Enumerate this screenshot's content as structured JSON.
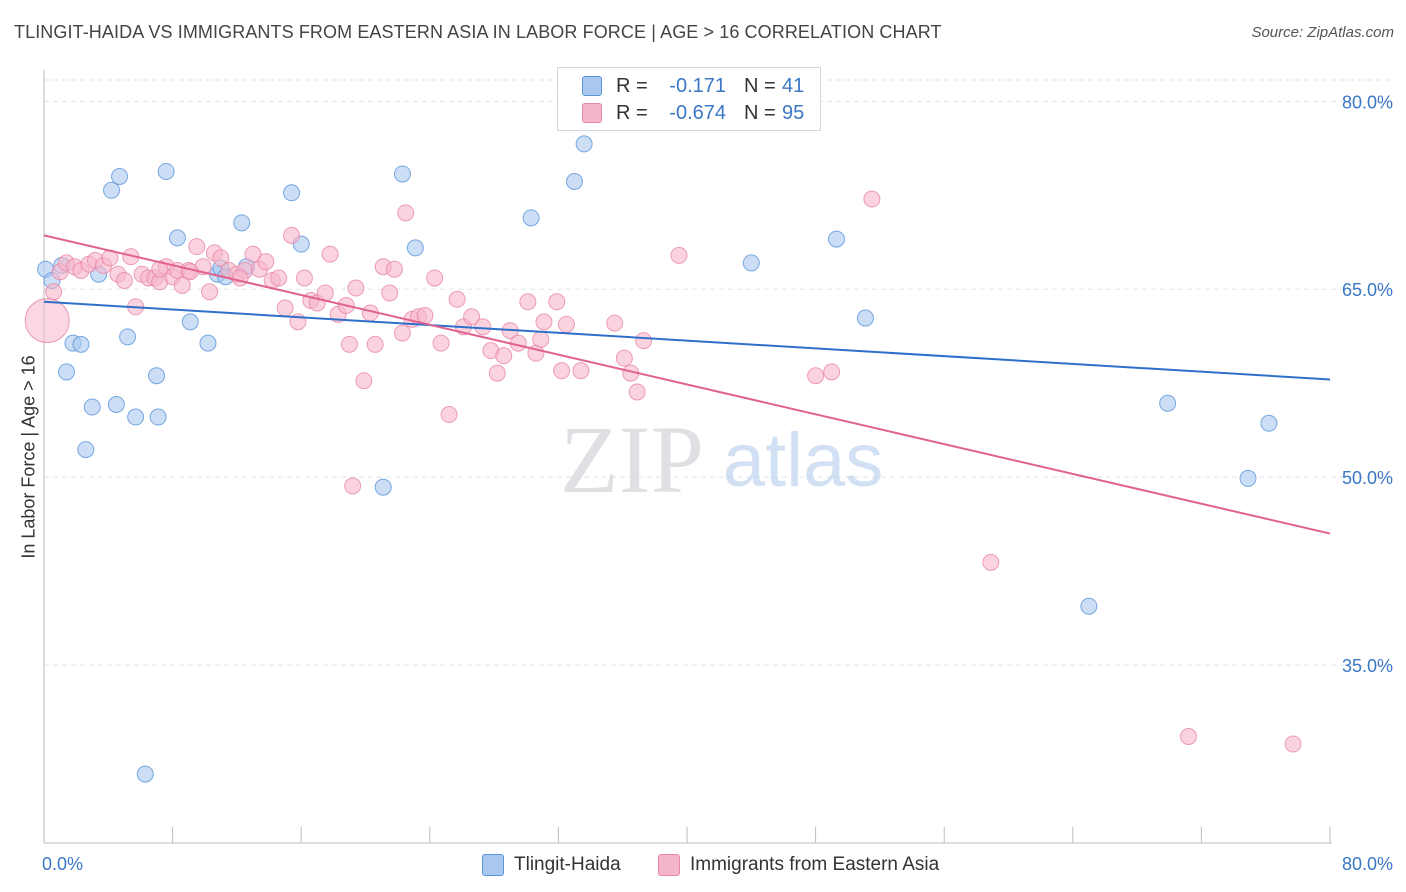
{
  "title": "TLINGIT-HAIDA VS IMMIGRANTS FROM EASTERN ASIA IN LABOR FORCE | AGE > 16 CORRELATION CHART",
  "source": "Source: ZipAtlas.com",
  "watermark": {
    "zip": "ZIP",
    "atlas": "atlas"
  },
  "colors": {
    "blue_fill": "#a9c8ef",
    "blue_stroke": "#5b95dc",
    "blue_line": "#2f6fcc",
    "pink_fill": "#f6b6ca",
    "pink_stroke": "#e987a8",
    "pink_line": "#e0628f",
    "axis_label": "#3a78c6",
    "grid": "#dfe3e8"
  },
  "legend_top": [
    {
      "r_label": "R =",
      "r_value": "-0.171",
      "n_label": "N =",
      "n_value": "41",
      "color": "blue"
    },
    {
      "r_label": "R =",
      "r_value": "-0.674",
      "n_label": "N =",
      "n_value": "95",
      "color": "pink"
    }
  ],
  "legend_bottom": [
    "Tlingit-Haida",
    "Immigrants from Eastern Asia"
  ],
  "chart_data": {
    "type": "scatter",
    "title": "TLINGIT-HAIDA VS IMMIGRANTS FROM EASTERN ASIA IN LABOR FORCE | AGE > 16 CORRELATION CHART",
    "xlabel": "",
    "ylabel": "In Labor Force | Age > 16",
    "xlim": [
      0,
      80
    ],
    "ylim": [
      20.8,
      82.5
    ],
    "x_tick_labels": [
      "0.0%",
      "80.0%"
    ],
    "y_tick_labels": [
      "80.0%",
      "65.0%",
      "50.0%",
      "35.0%"
    ],
    "y_ticks": [
      80,
      65,
      50,
      35
    ],
    "grid": true,
    "legend_position": "top-center",
    "series": [
      {
        "name": "Tlingit-Haida",
        "color": "blue",
        "trend": {
          "x": [
            0,
            80
          ],
          "y": [
            64.0,
            57.8
          ]
        },
        "points": [
          [
            0.1,
            66.6
          ],
          [
            0.5,
            65.7
          ],
          [
            1.1,
            66.9
          ],
          [
            1.4,
            58.4
          ],
          [
            1.8,
            60.7
          ],
          [
            2.3,
            60.6
          ],
          [
            2.6,
            52.2
          ],
          [
            3.0,
            55.6
          ],
          [
            3.4,
            66.2
          ],
          [
            4.2,
            72.9
          ],
          [
            4.5,
            55.8
          ],
          [
            4.7,
            74.0
          ],
          [
            5.2,
            61.2
          ],
          [
            5.7,
            54.8
          ],
          [
            6.3,
            26.3
          ],
          [
            7.0,
            58.1
          ],
          [
            7.1,
            54.8
          ],
          [
            7.6,
            74.4
          ],
          [
            8.3,
            69.1
          ],
          [
            9.1,
            62.4
          ],
          [
            10.2,
            60.7
          ],
          [
            10.8,
            66.2
          ],
          [
            11.0,
            66.7
          ],
          [
            11.3,
            66.0
          ],
          [
            12.3,
            70.3
          ],
          [
            12.6,
            66.8
          ],
          [
            15.4,
            72.7
          ],
          [
            16.0,
            68.6
          ],
          [
            21.1,
            49.2
          ],
          [
            22.3,
            74.2
          ],
          [
            23.1,
            68.3
          ],
          [
            30.3,
            70.7
          ],
          [
            33.0,
            73.6
          ],
          [
            33.6,
            76.6
          ],
          [
            44.0,
            67.1
          ],
          [
            49.3,
            69.0
          ],
          [
            51.1,
            62.7
          ],
          [
            65.0,
            39.7
          ],
          [
            69.9,
            55.9
          ],
          [
            74.9,
            49.9
          ],
          [
            76.2,
            54.3
          ]
        ]
      },
      {
        "name": "Immigrants from Eastern Asia",
        "color": "pink",
        "trend": {
          "x": [
            0,
            80
          ],
          "y": [
            69.3,
            45.5
          ]
        },
        "points": [
          [
            0.2,
            62.5
          ],
          [
            0.6,
            64.8
          ],
          [
            1.0,
            66.4
          ],
          [
            1.4,
            67.1
          ],
          [
            1.9,
            66.8
          ],
          [
            2.3,
            66.5
          ],
          [
            2.8,
            67.0
          ],
          [
            3.2,
            67.3
          ],
          [
            3.7,
            66.9
          ],
          [
            4.1,
            67.5
          ],
          [
            4.6,
            66.2
          ],
          [
            5.0,
            65.7
          ],
          [
            5.4,
            67.6
          ],
          [
            5.7,
            63.6
          ],
          [
            6.1,
            66.2
          ],
          [
            6.5,
            65.9
          ],
          [
            6.9,
            65.9
          ],
          [
            7.2,
            65.6
          ],
          [
            7.6,
            66.8
          ],
          [
            8.0,
            66.0
          ],
          [
            8.3,
            66.5
          ],
          [
            8.6,
            65.3
          ],
          [
            9.0,
            66.5
          ],
          [
            9.5,
            68.4
          ],
          [
            9.9,
            66.8
          ],
          [
            10.3,
            64.8
          ],
          [
            10.6,
            67.9
          ],
          [
            11.0,
            67.5
          ],
          [
            11.5,
            66.5
          ],
          [
            12.0,
            66.2
          ],
          [
            12.5,
            66.5
          ],
          [
            13.0,
            67.8
          ],
          [
            13.4,
            66.6
          ],
          [
            13.8,
            67.2
          ],
          [
            14.2,
            65.7
          ],
          [
            14.6,
            65.9
          ],
          [
            15.0,
            63.5
          ],
          [
            15.4,
            69.3
          ],
          [
            15.8,
            62.4
          ],
          [
            16.2,
            65.9
          ],
          [
            16.6,
            64.1
          ],
          [
            17.0,
            63.9
          ],
          [
            17.5,
            64.7
          ],
          [
            17.8,
            67.8
          ],
          [
            18.3,
            63.0
          ],
          [
            18.8,
            63.7
          ],
          [
            19.0,
            60.6
          ],
          [
            19.4,
            65.1
          ],
          [
            19.9,
            57.7
          ],
          [
            20.3,
            63.1
          ],
          [
            20.6,
            60.6
          ],
          [
            21.1,
            66.8
          ],
          [
            21.5,
            64.7
          ],
          [
            21.8,
            66.6
          ],
          [
            22.3,
            61.5
          ],
          [
            22.5,
            71.1
          ],
          [
            22.9,
            62.6
          ],
          [
            23.3,
            62.8
          ],
          [
            23.7,
            62.9
          ],
          [
            24.3,
            65.9
          ],
          [
            24.7,
            60.7
          ],
          [
            25.2,
            55.0
          ],
          [
            25.7,
            64.2
          ],
          [
            26.1,
            62.0
          ],
          [
            26.6,
            62.8
          ],
          [
            27.3,
            62.0
          ],
          [
            27.8,
            60.1
          ],
          [
            28.2,
            58.3
          ],
          [
            28.6,
            59.7
          ],
          [
            29.0,
            61.7
          ],
          [
            29.5,
            60.7
          ],
          [
            30.1,
            64.0
          ],
          [
            30.6,
            59.9
          ],
          [
            31.1,
            62.4
          ],
          [
            31.9,
            64.0
          ],
          [
            32.2,
            58.5
          ],
          [
            32.5,
            62.2
          ],
          [
            33.4,
            58.5
          ],
          [
            35.5,
            62.3
          ],
          [
            36.1,
            59.5
          ],
          [
            36.5,
            58.3
          ],
          [
            36.9,
            56.8
          ],
          [
            37.3,
            60.9
          ],
          [
            39.5,
            67.7
          ],
          [
            48.0,
            58.1
          ],
          [
            49.0,
            58.4
          ],
          [
            19.2,
            49.3
          ],
          [
            51.5,
            72.2
          ],
          [
            58.9,
            43.2
          ],
          [
            71.2,
            29.3
          ],
          [
            77.7,
            28.7
          ],
          [
            12.2,
            65.9
          ],
          [
            7.2,
            66.6
          ],
          [
            30.9,
            61.0
          ],
          [
            9.1,
            66.4
          ]
        ]
      }
    ]
  }
}
